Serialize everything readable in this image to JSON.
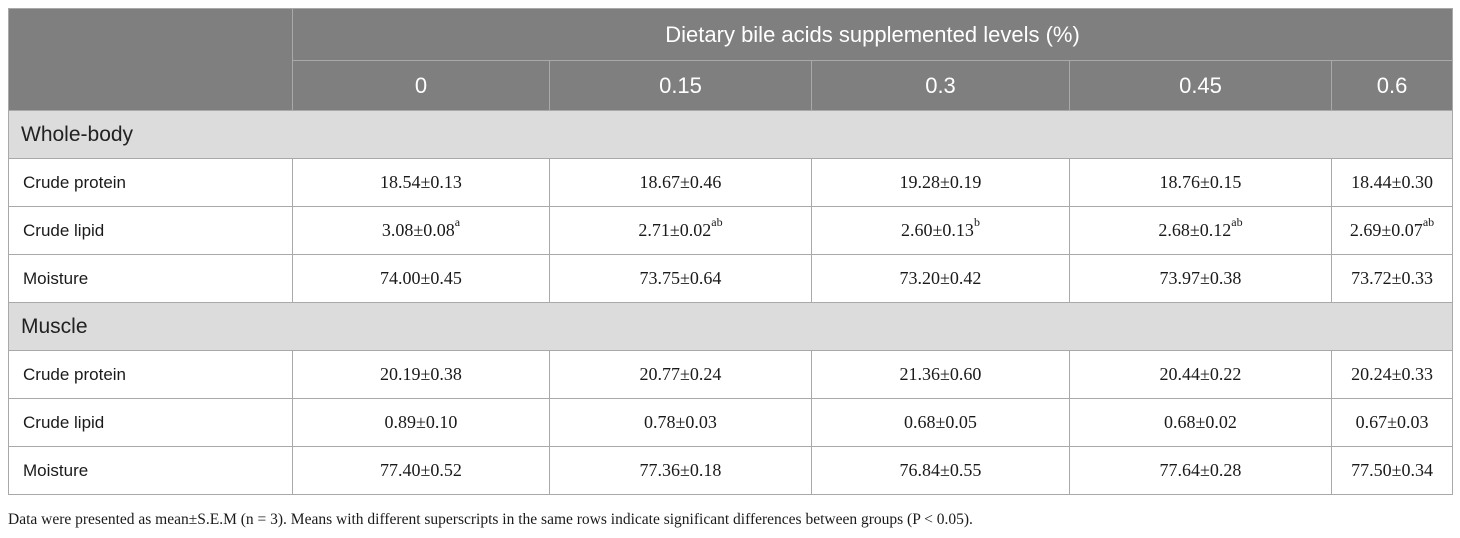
{
  "table": {
    "header_group": "Dietary bile acids supplemented levels (%)",
    "levels": [
      "0",
      "0.15",
      "0.3",
      "0.45",
      "0.6"
    ],
    "sections": [
      {
        "title": "Whole-body",
        "rows": [
          {
            "label": "Crude protein",
            "cells": [
              {
                "value": "18.54±0.13",
                "sup": ""
              },
              {
                "value": "18.67±0.46",
                "sup": ""
              },
              {
                "value": "19.28±0.19",
                "sup": ""
              },
              {
                "value": "18.76±0.15",
                "sup": ""
              },
              {
                "value": "18.44±0.30",
                "sup": ""
              }
            ]
          },
          {
            "label": "Crude lipid",
            "cells": [
              {
                "value": "3.08±0.08",
                "sup": "a"
              },
              {
                "value": "2.71±0.02",
                "sup": "ab"
              },
              {
                "value": "2.60±0.13",
                "sup": "b"
              },
              {
                "value": "2.68±0.12",
                "sup": "ab"
              },
              {
                "value": "2.69±0.07",
                "sup": "ab"
              }
            ]
          },
          {
            "label": "Moisture",
            "cells": [
              {
                "value": "74.00±0.45",
                "sup": ""
              },
              {
                "value": "73.75±0.64",
                "sup": ""
              },
              {
                "value": "73.20±0.42",
                "sup": ""
              },
              {
                "value": "73.97±0.38",
                "sup": ""
              },
              {
                "value": "73.72±0.33",
                "sup": ""
              }
            ]
          }
        ]
      },
      {
        "title": "Muscle",
        "rows": [
          {
            "label": "Crude protein",
            "cells": [
              {
                "value": "20.19±0.38",
                "sup": ""
              },
              {
                "value": "20.77±0.24",
                "sup": ""
              },
              {
                "value": "21.36±0.60",
                "sup": ""
              },
              {
                "value": "20.44±0.22",
                "sup": ""
              },
              {
                "value": "20.24±0.33",
                "sup": ""
              }
            ]
          },
          {
            "label": "Crude lipid",
            "cells": [
              {
                "value": "0.89±0.10",
                "sup": ""
              },
              {
                "value": "0.78±0.03",
                "sup": ""
              },
              {
                "value": "0.68±0.05",
                "sup": ""
              },
              {
                "value": "0.68±0.02",
                "sup": ""
              },
              {
                "value": "0.67±0.03",
                "sup": ""
              }
            ]
          },
          {
            "label": "Moisture",
            "cells": [
              {
                "value": "77.40±0.52",
                "sup": ""
              },
              {
                "value": "77.36±0.18",
                "sup": ""
              },
              {
                "value": "76.84±0.55",
                "sup": ""
              },
              {
                "value": "77.64±0.28",
                "sup": ""
              },
              {
                "value": "77.50±0.34",
                "sup": ""
              }
            ]
          }
        ]
      }
    ],
    "footnote": "Data were presented as mean±S.E.M (n = 3). Means with different superscripts in the same rows indicate significant differences between groups (P < 0.05)."
  },
  "colors": {
    "header_bg": "#7f7f7f",
    "section_bg": "#dcdcdc",
    "border": "#a9a9a9"
  }
}
